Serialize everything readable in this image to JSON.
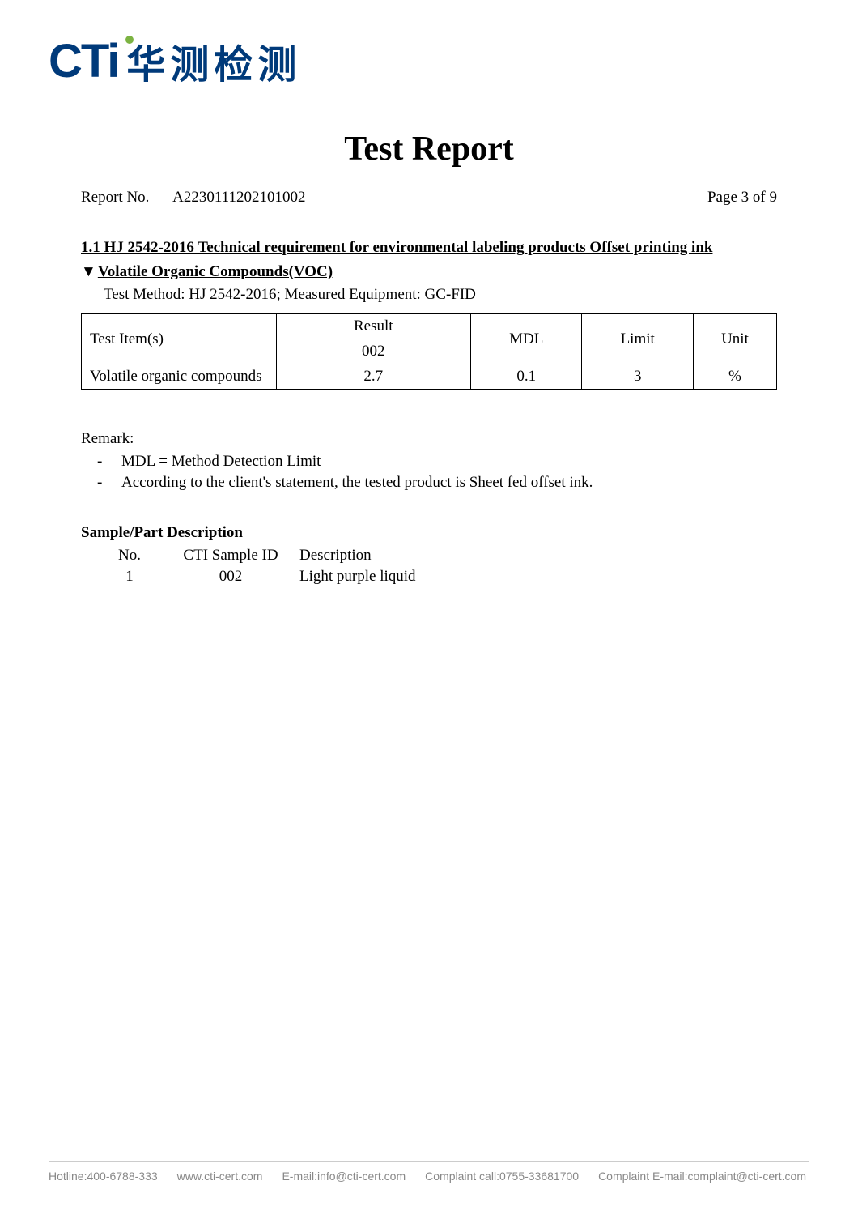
{
  "logo": {
    "cti": "CTi",
    "cn": "华测检测"
  },
  "title": "Test Report",
  "header": {
    "report_no_label": "Report No.",
    "report_no": "A2230111202101002",
    "page_label": "Page",
    "page_current": 3,
    "page_of": "of",
    "page_total": 9
  },
  "section": {
    "heading": "1.1 HJ 2542-2016 Technical requirement for environmental labeling products Offset printing ink",
    "sub_triangle": "▼",
    "sub_text": "Volatile Organic Compounds(VOC)",
    "method": "Test Method: HJ 2542-2016; Measured Equipment: GC-FID"
  },
  "results_table": {
    "columns": {
      "item": "Test Item(s)",
      "result": "Result",
      "result_sub": "002",
      "mdl": "MDL",
      "limit": "Limit",
      "unit": "Unit"
    },
    "rows": [
      {
        "item": "Volatile organic compounds",
        "result": "2.7",
        "mdl": "0.1",
        "limit": "3",
        "unit": "%"
      }
    ]
  },
  "remark": {
    "title": "Remark:",
    "items": [
      "MDL = Method Detection Limit",
      "According to the client's statement, the tested product is Sheet fed offset ink."
    ]
  },
  "sample": {
    "title": "Sample/Part Description",
    "columns": {
      "no": "No.",
      "id": "CTI Sample ID",
      "desc": "Description"
    },
    "rows": [
      {
        "no": "1",
        "id": "002",
        "desc": "Light purple liquid"
      }
    ]
  },
  "footer": {
    "hotline": "Hotline:400-6788-333",
    "web": "www.cti-cert.com",
    "email": "E-mail:info@cti-cert.com",
    "complaint_call": "Complaint call:0755-33681700",
    "complaint_email": "Complaint E-mail:complaint@cti-cert.com"
  }
}
